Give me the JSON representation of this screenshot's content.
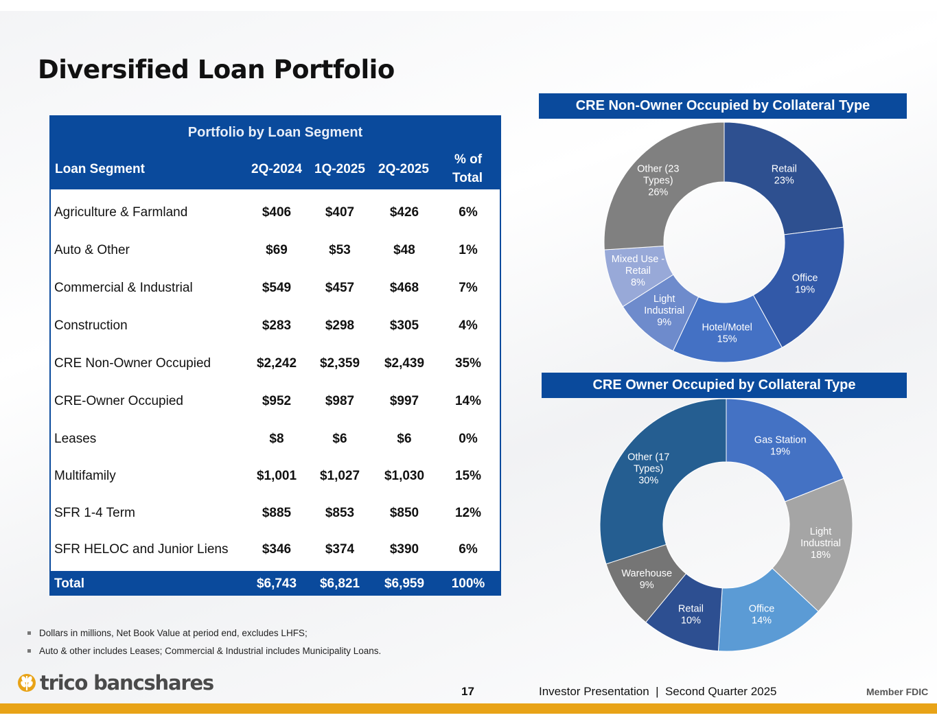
{
  "page_title": "Diversified Loan Portfolio",
  "table": {
    "caption": "Portfolio by Loan Segment",
    "headers": [
      "Loan Segment",
      "2Q-2024",
      "1Q-2025",
      "2Q-2025",
      "% of",
      "Total"
    ],
    "rows": [
      {
        "label": "Agriculture & Farmland",
        "v1": "$406",
        "v2": "$407",
        "v3": "$426",
        "pct": "6%"
      },
      {
        "label": "Auto & Other",
        "v1": "$69",
        "v2": "$53",
        "v3": "$48",
        "pct": "1%"
      },
      {
        "label": "Commercial & Industrial",
        "v1": "$549",
        "v2": "$457",
        "v3": "$468",
        "pct": "7%"
      },
      {
        "label": "Construction",
        "v1": "$283",
        "v2": "$298",
        "v3": "$305",
        "pct": "4%"
      },
      {
        "label": "CRE Non-Owner Occupied",
        "v1": "$2,242",
        "v2": "$2,359",
        "v3": "$2,439",
        "pct": "35%"
      },
      {
        "label": "CRE-Owner Occupied",
        "v1": "$952",
        "v2": "$987",
        "v3": "$997",
        "pct": "14%"
      },
      {
        "label": "Leases",
        "v1": "$8",
        "v2": "$6",
        "v3": "$6",
        "pct": "0%"
      },
      {
        "label": "Multifamily",
        "v1": "$1,001",
        "v2": "$1,027",
        "v3": "$1,030",
        "pct": "15%"
      },
      {
        "label": "SFR 1-4 Term",
        "v1": "$885",
        "v2": "$853",
        "v3": "$850",
        "pct": "12%"
      },
      {
        "label": "SFR HELOC and Junior Liens",
        "v1": "$346",
        "v2": "$374",
        "v3": "$390",
        "pct": "6%"
      }
    ],
    "total": {
      "label": "Total",
      "v1": "$6,743",
      "v2": "$6,821",
      "v3": "$6,959",
      "pct": "100%"
    }
  },
  "chart_data": [
    {
      "type": "pie",
      "title": "CRE Non-Owner Occupied by Collateral Type",
      "slices": [
        {
          "label": [
            "Retail",
            "23%"
          ],
          "value": 23,
          "color": "#2e5090"
        },
        {
          "label": [
            "Office",
            "19%"
          ],
          "value": 19,
          "color": "#3259a8"
        },
        {
          "label": [
            "Hotel/Motel",
            "15%"
          ],
          "value": 15,
          "color": "#4471c4"
        },
        {
          "label": [
            "Light",
            "Industrial",
            "9%"
          ],
          "value": 9,
          "color": "#6e8bcc"
        },
        {
          "label": [
            "Mixed Use -",
            "Retail",
            "8%"
          ],
          "value": 8,
          "color": "#98a9d8"
        },
        {
          "label": [
            "Other (23",
            "Types)",
            "26%"
          ],
          "value": 26,
          "color": "#808080"
        }
      ]
    },
    {
      "type": "pie",
      "title": "CRE Owner Occupied by Collateral Type",
      "slices": [
        {
          "label": [
            "Gas Station",
            "19%"
          ],
          "value": 19,
          "color": "#4472c4"
        },
        {
          "label": [
            "Light",
            "Industrial",
            "18%"
          ],
          "value": 18,
          "color": "#a5a5a5"
        },
        {
          "label": [
            "Office",
            "14%"
          ],
          "value": 14,
          "color": "#5b9bd5"
        },
        {
          "label": [
            "Retail",
            "10%"
          ],
          "value": 10,
          "color": "#2d4f91"
        },
        {
          "label": [
            "Warehouse",
            "9%"
          ],
          "value": 9,
          "color": "#757575"
        },
        {
          "label": [
            "Other (17",
            "Types)",
            "30%"
          ],
          "value": 30,
          "color": "#255e91"
        }
      ]
    }
  ],
  "footnotes": [
    "Dollars in millions, Net Book Value at period end, excludes LHFS;",
    "Auto & other includes Leases; Commercial & Industrial includes Municipality Loans."
  ],
  "footer": {
    "logo_text": "trico bancshares",
    "page_number": "17",
    "presentation": "Investor Presentation  |  Second Quarter 2025",
    "member_fdic": "Member FDIC"
  },
  "colors": {
    "brand_blue": "#0a4a9c",
    "gold": "#e8a317"
  }
}
